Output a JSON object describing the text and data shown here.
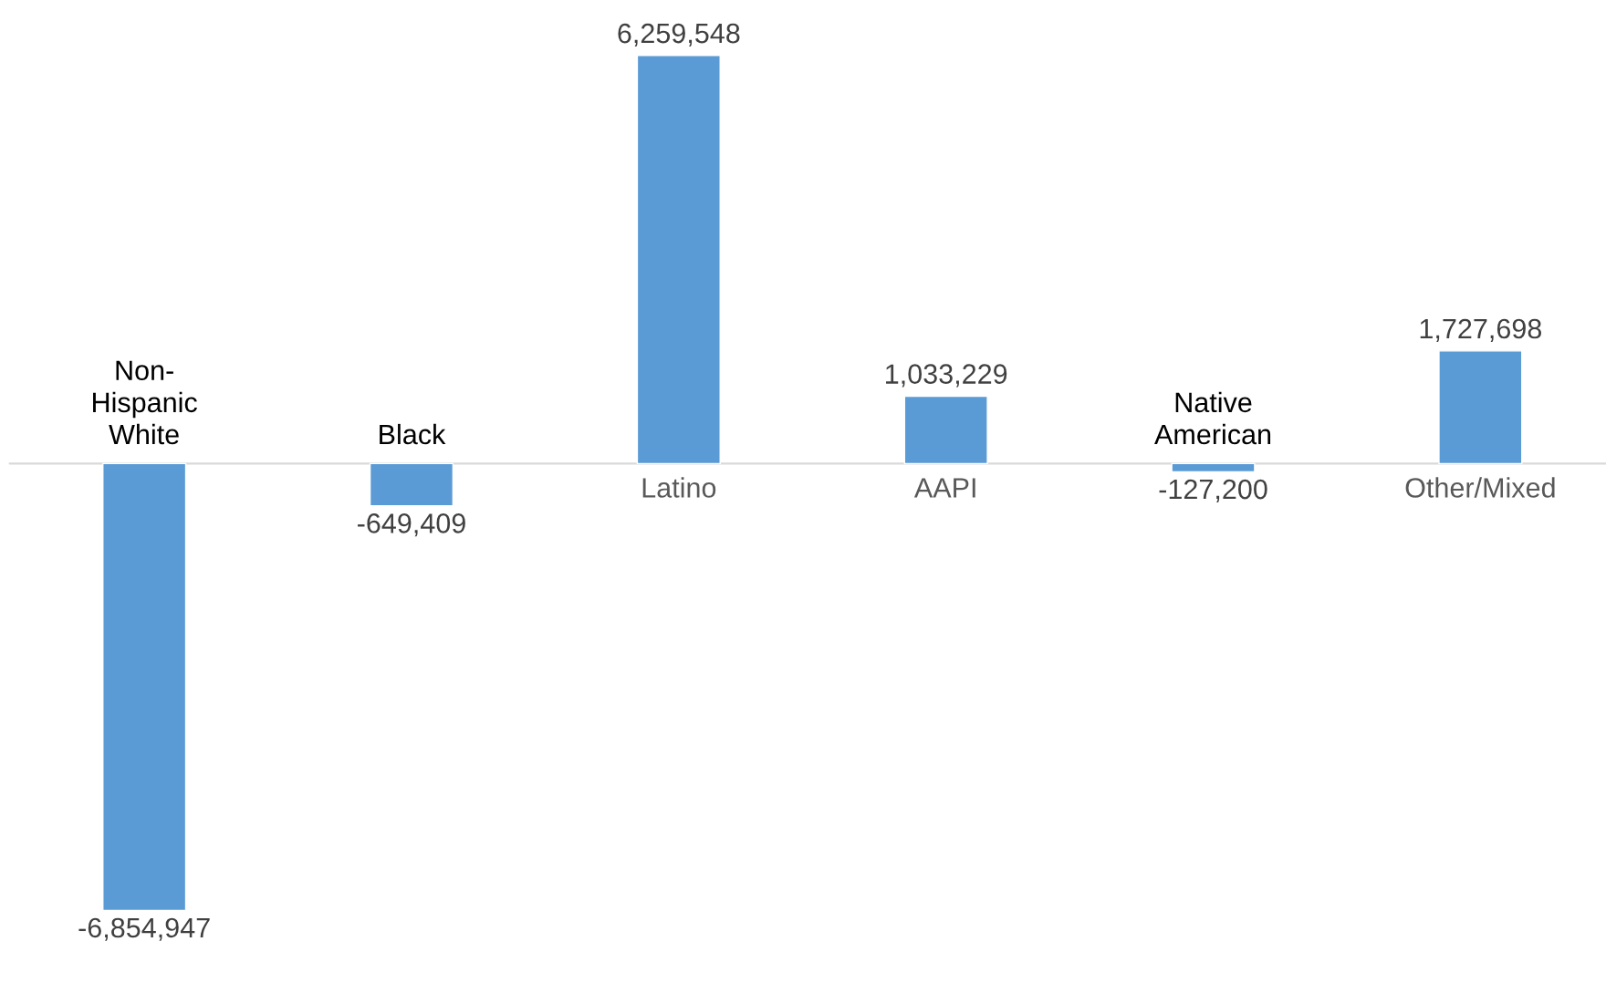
{
  "chart_data": {
    "type": "bar",
    "categories": [
      "Non-Hispanic White",
      "Black",
      "Latino",
      "AAPI",
      "Native American",
      "Other/Mixed"
    ],
    "values": [
      -6854947,
      -649409,
      6259548,
      1033229,
      -127200,
      1727698
    ],
    "value_labels": [
      "-6,854,947",
      "-649,409",
      "6,259,548",
      "1,033,229",
      "-127,200",
      "1,727,698"
    ],
    "color": "#5b9bd5"
  }
}
